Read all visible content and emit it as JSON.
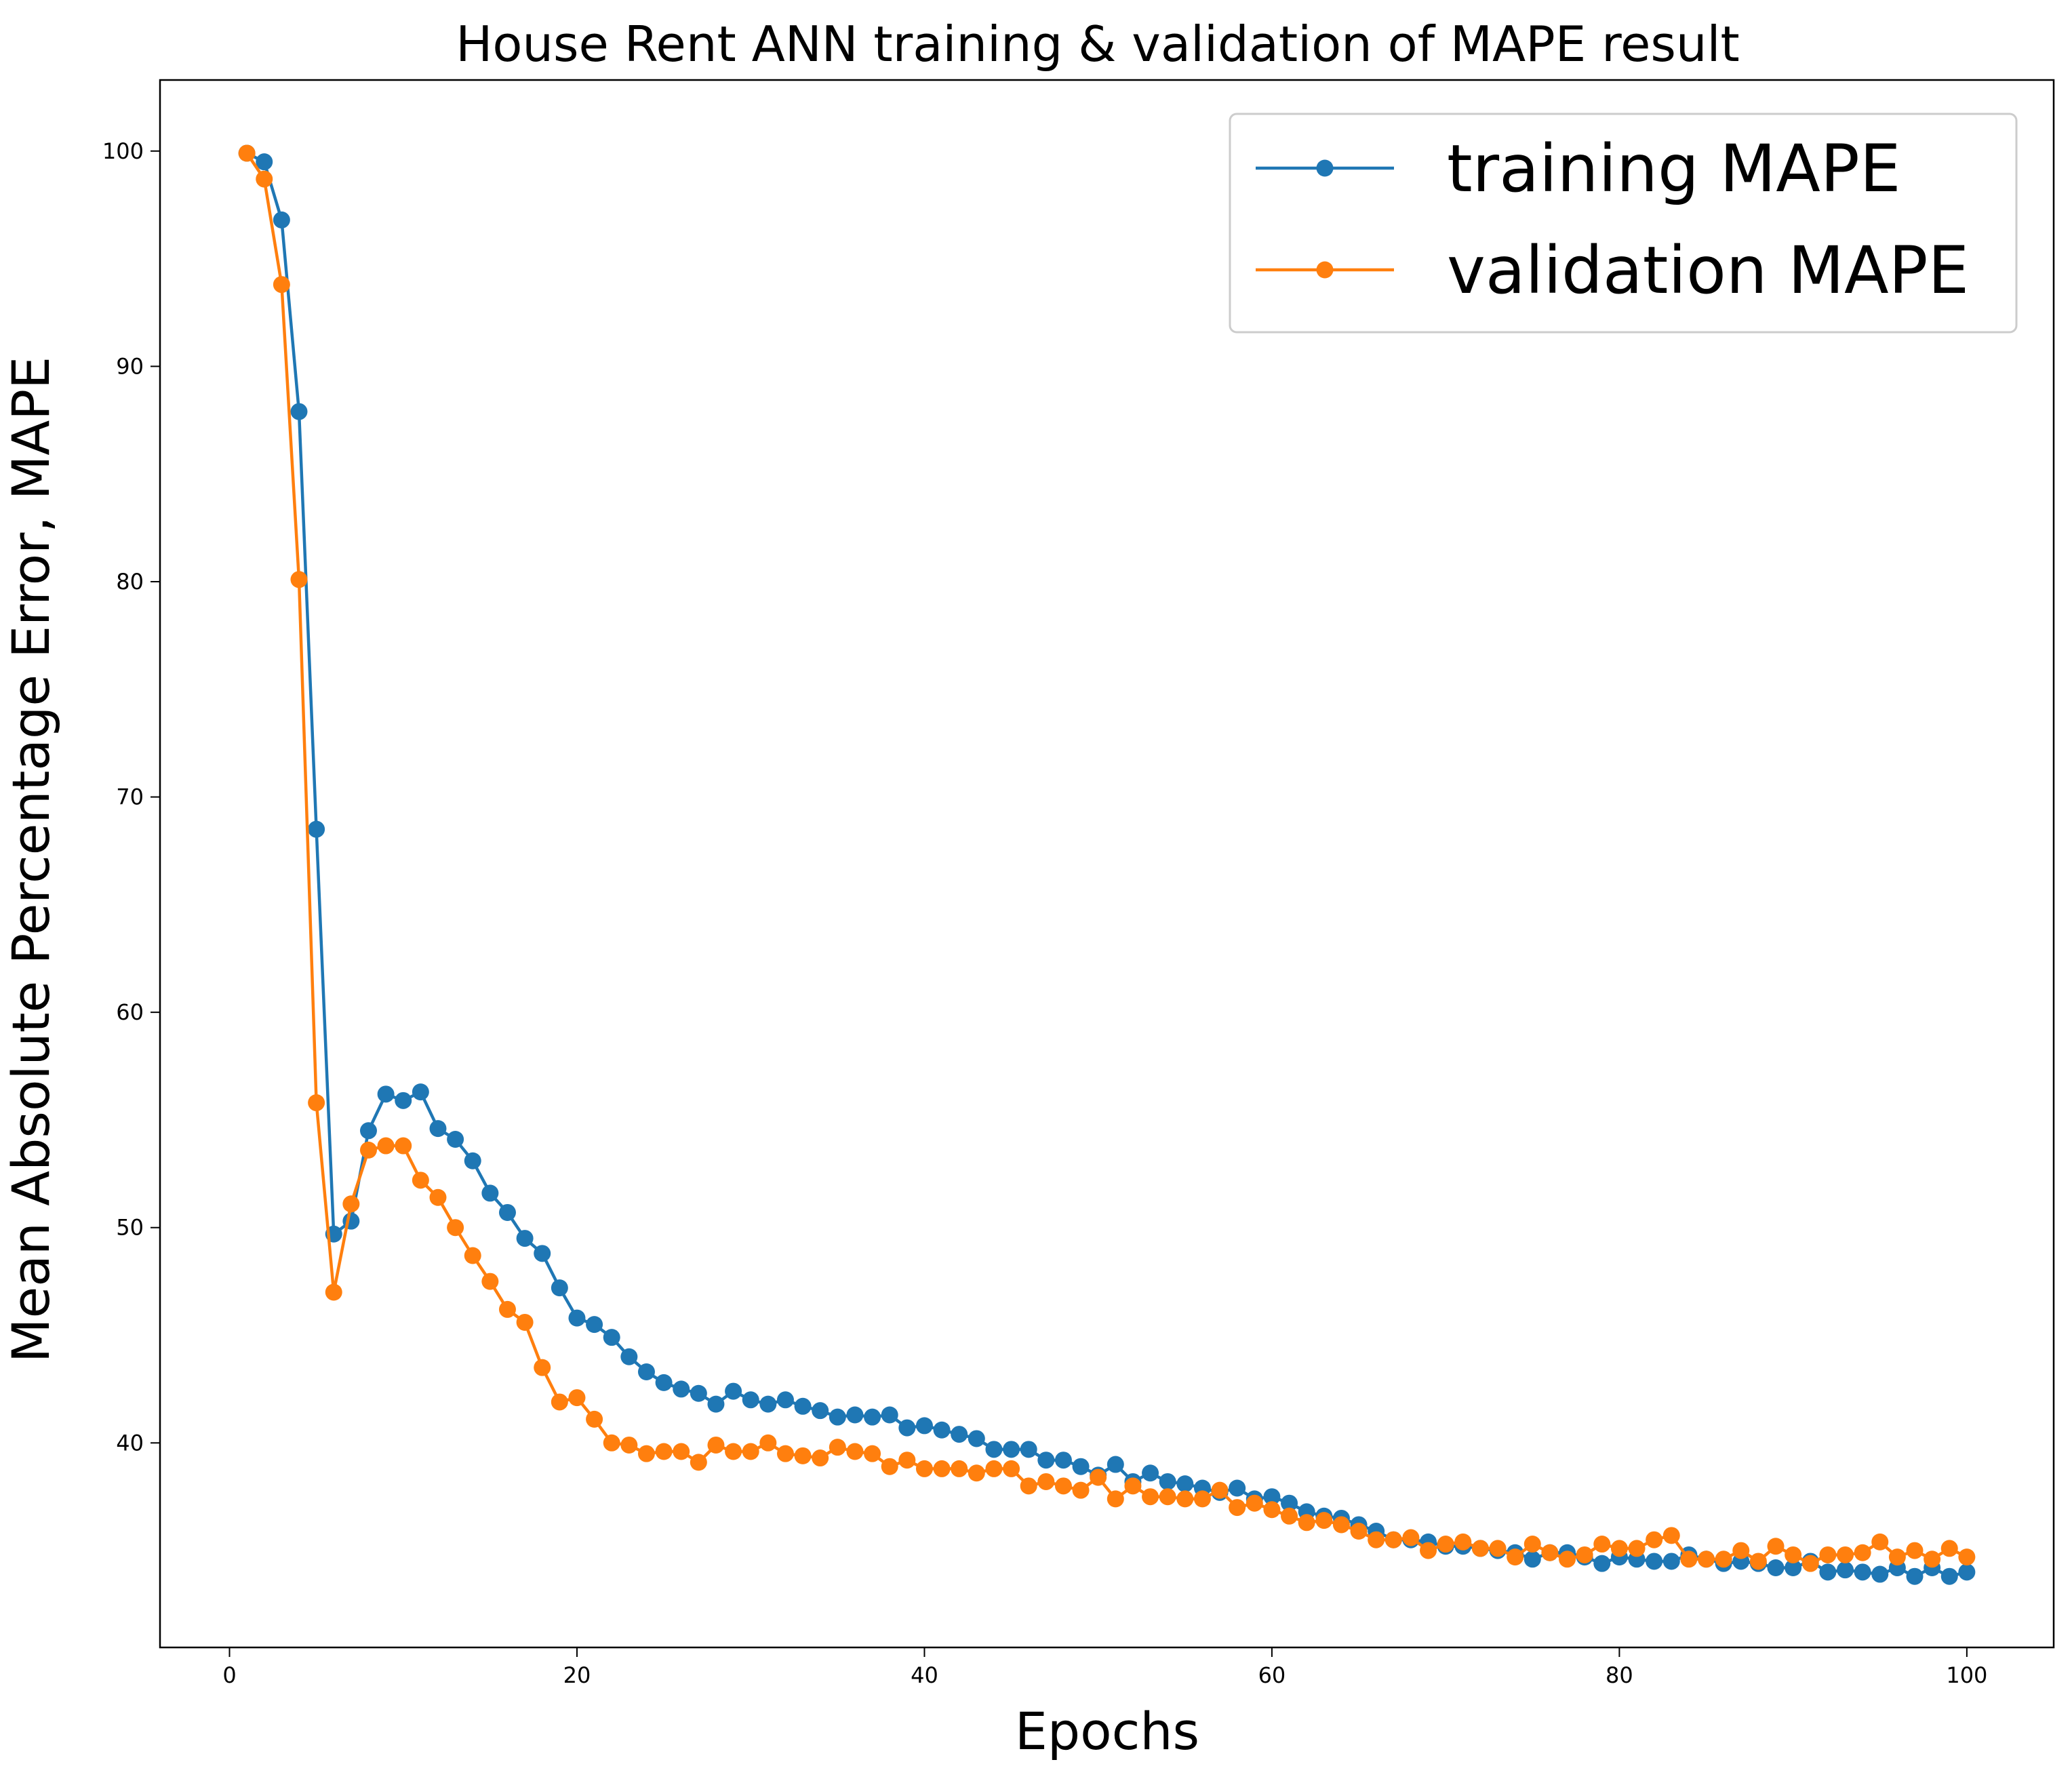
{
  "chart_data": {
    "type": "line",
    "title": "House Rent ANN training & validation of MAPE result",
    "xlabel": "Epochs",
    "ylabel": "Mean Absolute Percentage Error, MAPE",
    "xlim": [
      -4,
      105
    ],
    "ylim": [
      30.5,
      103.3
    ],
    "xticks": [
      "0",
      "20",
      "40",
      "60",
      "80",
      "100"
    ],
    "yticks": [
      "40",
      "50",
      "60",
      "70",
      "80",
      "90",
      "100"
    ],
    "grid": false,
    "legend_position": "top-right",
    "marker": "circle",
    "x": [
      1,
      2,
      3,
      4,
      5,
      6,
      7,
      8,
      9,
      10,
      11,
      12,
      13,
      14,
      15,
      16,
      17,
      18,
      19,
      20,
      21,
      22,
      23,
      24,
      25,
      26,
      27,
      28,
      29,
      30,
      31,
      32,
      33,
      34,
      35,
      36,
      37,
      38,
      39,
      40,
      41,
      42,
      43,
      44,
      45,
      46,
      47,
      48,
      49,
      50,
      51,
      52,
      53,
      54,
      55,
      56,
      57,
      58,
      59,
      60,
      61,
      62,
      63,
      64,
      65,
      66,
      67,
      68,
      69,
      70,
      71,
      72,
      73,
      74,
      75,
      76,
      77,
      78,
      79,
      80,
      81,
      82,
      83,
      84,
      85,
      86,
      87,
      88,
      89,
      90,
      91,
      92,
      93,
      94,
      95,
      96,
      97,
      98,
      99,
      100
    ],
    "series": [
      {
        "name": "training MAPE",
        "color": "#1f77b4",
        "values": [
          99.9,
          99.5,
          96.8,
          87.9,
          68.5,
          49.7,
          50.3,
          54.5,
          56.2,
          55.9,
          56.3,
          54.6,
          54.1,
          53.1,
          51.6,
          50.7,
          49.5,
          48.8,
          47.2,
          45.8,
          45.5,
          44.9,
          44.0,
          43.3,
          42.8,
          42.5,
          42.3,
          41.8,
          42.4,
          42.0,
          41.8,
          42.0,
          41.7,
          41.5,
          41.2,
          41.3,
          41.2,
          41.3,
          40.7,
          40.8,
          40.6,
          40.4,
          40.2,
          39.7,
          39.7,
          39.7,
          39.2,
          39.2,
          38.9,
          38.5,
          39.0,
          38.2,
          38.6,
          38.2,
          38.1,
          37.9,
          37.7,
          37.9,
          37.4,
          37.5,
          37.2,
          36.8,
          36.6,
          36.5,
          36.2,
          35.9,
          35.5,
          35.5,
          35.4,
          35.2,
          35.2,
          35.1,
          35.0,
          34.9,
          34.6,
          34.9,
          34.9,
          34.7,
          34.4,
          34.7,
          34.6,
          34.5,
          34.5,
          34.8,
          34.6,
          34.4,
          34.5,
          34.4,
          34.2,
          34.2,
          34.5,
          34.0,
          34.1,
          34.0,
          33.9,
          34.2,
          33.8,
          34.2,
          33.8,
          34.0
        ]
      },
      {
        "name": "validation MAPE",
        "color": "#ff7f0e",
        "values": [
          99.9,
          98.7,
          93.8,
          80.1,
          55.8,
          47.0,
          51.1,
          53.6,
          53.8,
          53.8,
          52.2,
          51.4,
          50.0,
          48.7,
          47.5,
          46.2,
          45.6,
          43.5,
          41.9,
          42.1,
          41.1,
          40.0,
          39.9,
          39.5,
          39.6,
          39.6,
          39.1,
          39.9,
          39.6,
          39.6,
          40.0,
          39.5,
          39.4,
          39.3,
          39.8,
          39.6,
          39.5,
          38.9,
          39.2,
          38.8,
          38.8,
          38.8,
          38.6,
          38.8,
          38.8,
          38.0,
          38.2,
          38.0,
          37.8,
          38.4,
          37.4,
          38.0,
          37.5,
          37.5,
          37.4,
          37.4,
          37.8,
          37.0,
          37.2,
          36.9,
          36.6,
          36.3,
          36.4,
          36.2,
          35.9,
          35.5,
          35.5,
          35.6,
          35.0,
          35.3,
          35.4,
          35.1,
          35.1,
          34.7,
          35.3,
          34.9,
          34.6,
          34.8,
          35.3,
          35.1,
          35.1,
          35.5,
          35.7,
          34.6,
          34.6,
          34.6,
          35.0,
          34.5,
          35.2,
          34.8,
          34.4,
          34.8,
          34.8,
          34.9,
          35.4,
          34.7,
          35.0,
          34.6,
          35.1,
          34.7
        ]
      }
    ]
  }
}
